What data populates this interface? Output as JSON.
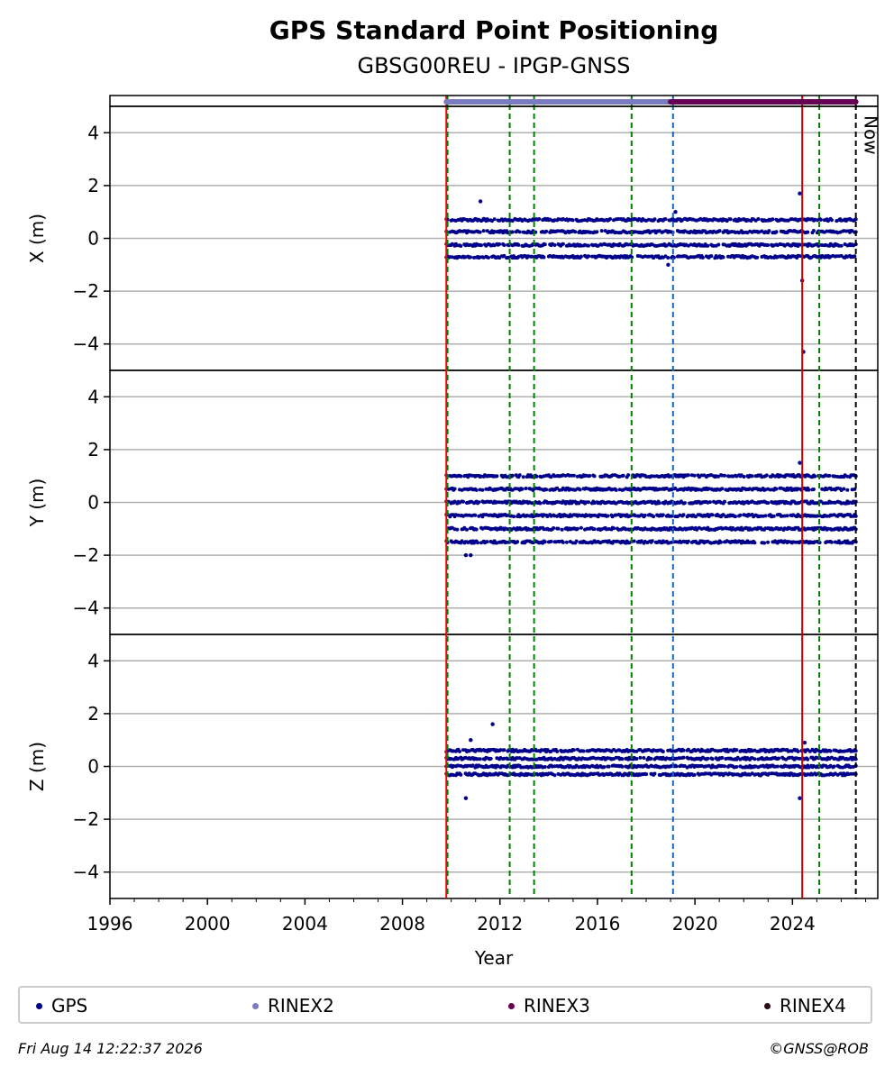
{
  "chart_data": {
    "type": "scatter",
    "title": "GPS Standard Point Positioning",
    "subtitle": "GBSG00REU - IPGP-GNSS",
    "xlabel": "Year",
    "xlim": [
      1996,
      2027.5
    ],
    "x_ticks": [
      "1996",
      "2000",
      "2004",
      "2008",
      "2012",
      "2016",
      "2020",
      "2024"
    ],
    "y_ticks": [
      "4",
      "2",
      "0",
      "−2",
      "−4"
    ],
    "ylim": [
      -5,
      5
    ],
    "grid": true,
    "now_label": "Now",
    "panels": [
      {
        "ylabel": "X (m)",
        "levels": [
          -0.7,
          -0.25,
          0.25,
          0.7
        ],
        "extremes": [
          [
            2011.2,
            1.4
          ],
          [
            2024.3,
            1.7
          ],
          [
            2024.4,
            -1.6
          ],
          [
            2024.45,
            -4.3
          ],
          [
            2018.9,
            -1.0
          ],
          [
            2019.2,
            1.0
          ]
        ]
      },
      {
        "ylabel": "Y (m)",
        "levels": [
          -1.5,
          -1.0,
          -0.5,
          0.0,
          0.5,
          1.0
        ],
        "extremes": [
          [
            2010.6,
            -2.0
          ],
          [
            2010.8,
            -2.0
          ],
          [
            2024.3,
            1.5
          ],
          [
            2024.5,
            1.0
          ]
        ]
      },
      {
        "ylabel": "Z (m)",
        "levels": [
          -0.3,
          0.0,
          0.3,
          0.6
        ],
        "extremes": [
          [
            2011.7,
            1.6
          ],
          [
            2010.6,
            -1.2
          ],
          [
            2024.3,
            -1.2
          ],
          [
            2010.8,
            1.0
          ],
          [
            2024.5,
            0.9
          ]
        ]
      }
    ],
    "data_span": [
      2009.8,
      2026.6
    ],
    "rinex_bar": [
      {
        "name": "RINEX2",
        "start": 2009.8,
        "end": 2019.0,
        "color": "#7b7bbf"
      },
      {
        "name": "RINEX3",
        "start": 2019.0,
        "end": 2026.6,
        "color": "#660055"
      }
    ],
    "events": [
      {
        "x": 2009.8,
        "style": "solid",
        "color": "#ff0000"
      },
      {
        "x": 2009.85,
        "style": "dashed",
        "color": "#008000"
      },
      {
        "x": 2012.4,
        "style": "dashed",
        "color": "#008000"
      },
      {
        "x": 2013.4,
        "style": "dashed",
        "color": "#008000"
      },
      {
        "x": 2017.4,
        "style": "dashed",
        "color": "#008000"
      },
      {
        "x": 2019.1,
        "style": "dashed",
        "color": "#1565c0"
      },
      {
        "x": 2024.4,
        "style": "solid",
        "color": "#cc0000"
      },
      {
        "x": 2025.1,
        "style": "dashed",
        "color": "#008000"
      },
      {
        "x": 2026.6,
        "style": "dashed",
        "color": "#000000"
      }
    ],
    "legend": [
      {
        "label": "GPS",
        "color": "#00008b"
      },
      {
        "label": "RINEX2",
        "color": "#7b7bbf"
      },
      {
        "label": "RINEX3",
        "color": "#660055"
      },
      {
        "label": "RINEX4",
        "color": "#2b0a1a"
      }
    ]
  },
  "footer": {
    "timestamp": "Fri Aug 14 12:22:37 2026",
    "credit": "©GNSS@ROB"
  }
}
